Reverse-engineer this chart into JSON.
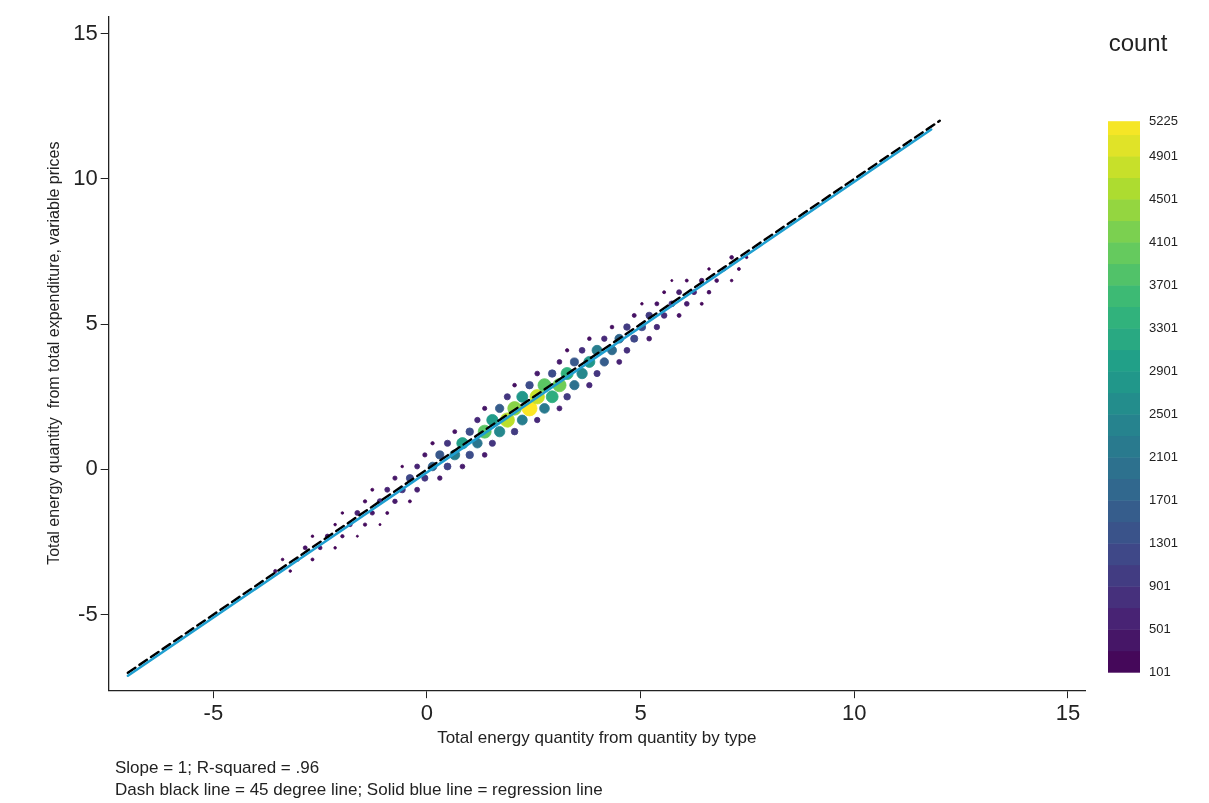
{
  "chart_data": {
    "type": "scatter",
    "xlabel": "Total energy quantity from quantity by type",
    "ylabel": "Total energy quantity  from total expenditure, variable prices",
    "clabel": "count",
    "annotations": [
      "Slope = 1; R-squared = .96",
      "Dash black line = 45 degree line; Solid blue line = regression line"
    ],
    "xlim": [
      -7.45,
      15.4
    ],
    "ylim": [
      -7.6,
      15.6
    ],
    "xticks": [
      -5,
      0,
      5,
      10,
      15
    ],
    "yticks": [
      -5,
      0,
      5,
      10,
      15
    ],
    "clim": [
      101,
      5225
    ],
    "cticks": [
      101,
      501,
      901,
      1301,
      1701,
      2101,
      2501,
      2901,
      3301,
      3701,
      4101,
      4501,
      4901,
      5225
    ],
    "grid": false,
    "legend": false,
    "marker": "circle",
    "series": [
      {
        "type": "scatter",
        "x": [
          -3.55,
          -3.2,
          -3.38,
          -3.03,
          -2.68,
          -2.85,
          -2.5,
          -2.15,
          -2.68,
          -2.33,
          -1.98,
          -1.63,
          -2.15,
          -1.8,
          -1.45,
          -1.1,
          -1.98,
          -1.63,
          -1.28,
          -0.93,
          -1.45,
          -1.1,
          -0.75,
          -0.4,
          -1.28,
          -0.93,
          -0.58,
          -0.23,
          -0.75,
          -0.4,
          -0.05,
          0.3,
          -0.58,
          -0.23,
          0.13,
          0.48,
          0.83,
          -0.05,
          0.3,
          0.65,
          1.0,
          1.35,
          0.13,
          0.48,
          0.83,
          1.18,
          1.53,
          0.65,
          1.0,
          1.35,
          1.7,
          2.05,
          1.18,
          1.53,
          1.88,
          2.23,
          2.58,
          1.35,
          1.7,
          2.05,
          2.4,
          2.75,
          3.1,
          1.88,
          2.23,
          2.58,
          2.93,
          3.28,
          2.05,
          2.4,
          2.75,
          3.1,
          3.45,
          3.8,
          2.58,
          2.93,
          3.28,
          3.63,
          3.98,
          3.1,
          3.45,
          3.8,
          4.15,
          4.5,
          3.28,
          3.63,
          3.98,
          4.33,
          4.68,
          3.8,
          4.15,
          4.5,
          4.85,
          5.2,
          4.33,
          4.68,
          5.03,
          5.38,
          4.85,
          5.2,
          5.55,
          5.9,
          5.03,
          5.38,
          5.73,
          6.08,
          6.43,
          5.55,
          5.9,
          6.25,
          6.6,
          5.73,
          6.08,
          6.43,
          6.78,
          7.13,
          6.6,
          6.95,
          7.3,
          7.13,
          7.48
        ],
        "values": [
          -3.5,
          -3.5,
          -3.1,
          -3.1,
          -3.1,
          -2.7,
          -2.7,
          -2.7,
          -2.3,
          -2.3,
          -2.3,
          -2.3,
          -1.9,
          -1.9,
          -1.9,
          -1.9,
          -1.5,
          -1.5,
          -1.5,
          -1.5,
          -1.1,
          -1.1,
          -1.1,
          -1.1,
          -0.7,
          -0.7,
          -0.7,
          -0.7,
          -0.3,
          -0.3,
          -0.3,
          -0.3,
          0.1,
          0.1,
          0.1,
          0.1,
          0.1,
          0.5,
          0.5,
          0.5,
          0.5,
          0.5,
          0.9,
          0.9,
          0.9,
          0.9,
          0.9,
          1.3,
          1.3,
          1.3,
          1.3,
          1.3,
          1.7,
          1.7,
          1.7,
          1.7,
          1.7,
          2.1,
          2.1,
          2.1,
          2.1,
          2.1,
          2.1,
          2.5,
          2.5,
          2.5,
          2.5,
          2.5,
          2.9,
          2.9,
          2.9,
          2.9,
          2.9,
          2.9,
          3.3,
          3.3,
          3.3,
          3.3,
          3.3,
          3.7,
          3.7,
          3.7,
          3.7,
          3.7,
          4.1,
          4.1,
          4.1,
          4.1,
          4.1,
          4.5,
          4.5,
          4.5,
          4.5,
          4.5,
          4.9,
          4.9,
          4.9,
          4.9,
          5.3,
          5.3,
          5.3,
          5.3,
          5.7,
          5.7,
          5.7,
          5.7,
          5.7,
          6.1,
          6.1,
          6.1,
          6.1,
          6.5,
          6.5,
          6.5,
          6.5,
          6.5,
          6.9,
          6.9,
          6.9,
          7.3,
          7.3
        ],
        "colors": [
          "#450b5d",
          "#450659",
          "#440457",
          "#450f61",
          "#45085a",
          "#461264",
          "#450f61",
          "#440457",
          "#440456",
          "#461667",
          "#450c5e",
          "#440255",
          "#450659",
          "#461869",
          "#450b5d",
          "#440255",
          "#440658",
          "#472070",
          "#461768",
          "#450a5c",
          "#450b5d",
          "#472a79",
          "#46196a",
          "#45085b",
          "#45085a",
          "#482374",
          "#44367f",
          "#472070",
          "#461667",
          "#3f4888",
          "#44367f",
          "#46196a",
          "#440457",
          "#482374",
          "#33628d",
          "#404285",
          "#471c6d",
          "#461667",
          "#38588b",
          "#287e8e",
          "#3d4d8a",
          "#471c6d",
          "#450b5d",
          "#44367f",
          "#21a088",
          "#2b758e",
          "#44367f",
          "#461264",
          "#3d4d8a",
          "#5bc663",
          "#25888d",
          "#423c82",
          "#472a79",
          "#209c89",
          "#badf2b",
          "#287e8e",
          "#472a79",
          "#461667",
          "#365d8c",
          "#88d348",
          "#fde725",
          "#297a8e",
          "#482374",
          "#44367f",
          "#21978a",
          "#c7e02a",
          "#2dad7f",
          "#423c82",
          "#450f61",
          "#3d4d8a",
          "#5bc663",
          "#6fcd58",
          "#2d718e",
          "#472a79",
          "#471c6d",
          "#3d4d8a",
          "#30b27c",
          "#25888d",
          "#44367f",
          "#471c6d",
          "#38588b",
          "#21978a",
          "#365d8c",
          "#482374",
          "#450b5d",
          "#46307c",
          "#287e8e",
          "#2f6c8e",
          "#46307c",
          "#450f61",
          "#472a79",
          "#31688e",
          "#3f4888",
          "#471c6d",
          "#450f61",
          "#423c82",
          "#3d4d8a",
          "#472a79",
          "#461264",
          "#423c82",
          "#472d7a",
          "#461264",
          "#440457",
          "#461264",
          "#46307c",
          "#471c6d",
          "#45085a",
          "#45085a",
          "#472070",
          "#482374",
          "#450f61",
          "#440255",
          "#45085a",
          "#46196a",
          "#450f61",
          "#440457",
          "#440457",
          "#461264",
          "#45085a",
          "#450f61",
          "#440457"
        ],
        "sizes": [
          0.05,
          0.03,
          0.03,
          0.06,
          0.04,
          0.07,
          0.06,
          0.03,
          0.03,
          0.08,
          0.05,
          0.02,
          0.03,
          0.08,
          0.05,
          0.02,
          0.03,
          0.11,
          0.08,
          0.04,
          0.05,
          0.13,
          0.09,
          0.04,
          0.04,
          0.11,
          0.17,
          0.11,
          0.08,
          0.23,
          0.17,
          0.09,
          0.03,
          0.11,
          0.33,
          0.21,
          0.1,
          0.08,
          0.29,
          0.44,
          0.25,
          0.1,
          0.05,
          0.17,
          0.57,
          0.4,
          0.17,
          0.07,
          0.25,
          0.75,
          0.48,
          0.19,
          0.13,
          0.56,
          0.9,
          0.44,
          0.13,
          0.08,
          0.31,
          0.82,
          1,
          0.42,
          0.11,
          0.17,
          0.54,
          0.92,
          0.63,
          0.19,
          0.06,
          0.25,
          0.75,
          0.78,
          0.38,
          0.13,
          0.1,
          0.25,
          0.65,
          0.48,
          0.17,
          0.1,
          0.29,
          0.54,
          0.31,
          0.11,
          0.05,
          0.15,
          0.44,
          0.36,
          0.15,
          0.06,
          0.13,
          0.34,
          0.23,
          0.1,
          0.06,
          0.19,
          0.25,
          0.13,
          0.07,
          0.19,
          0.14,
          0.07,
          0.03,
          0.07,
          0.15,
          0.1,
          0.04,
          0.04,
          0.11,
          0.11,
          0.06,
          0.02,
          0.04,
          0.09,
          0.06,
          0.03,
          0.03,
          0.07,
          0.04,
          0.06,
          0.03
        ],
        "cvalues": [
          250,
          180,
          150,
          300,
          200,
          350,
          300,
          150,
          140,
          400,
          260,
          120,
          180,
          430,
          250,
          120,
          170,
          550,
          420,
          230,
          250,
          700,
          450,
          210,
          200,
          600,
          900,
          550,
          400,
          1200,
          900,
          450,
          150,
          600,
          1700,
          1100,
          500,
          400,
          1500,
          2300,
          1300,
          500,
          250,
          900,
          3000,
          2100,
          900,
          350,
          1300,
          3900,
          2500,
          1000,
          700,
          2900,
          4700,
          2300,
          700,
          400,
          1600,
          4300,
          5225,
          2200,
          600,
          900,
          2800,
          4800,
          3300,
          1000,
          300,
          1300,
          3900,
          4100,
          2000,
          700,
          500,
          1300,
          3400,
          2500,
          900,
          500,
          1500,
          2800,
          1600,
          600,
          250,
          800,
          2300,
          1900,
          800,
          300,
          700,
          1800,
          1200,
          500,
          300,
          1000,
          1300,
          700,
          350,
          1000,
          750,
          350,
          150,
          350,
          800,
          500,
          200,
          200,
          550,
          600,
          300,
          110,
          200,
          450,
          300,
          150,
          150,
          350,
          200,
          300,
          150
        ]
      },
      {
        "type": "line",
        "x": [
          -7,
          12
        ],
        "values": [
          -7,
          12
        ],
        "color": "#000000",
        "line_style": "dashed",
        "marker": "none"
      },
      {
        "type": "line",
        "x": [
          -7,
          11.8
        ],
        "values": [
          -7.1,
          11.7
        ],
        "color": "#1f9fd0",
        "line_style": "solid",
        "marker": "none"
      }
    ]
  }
}
